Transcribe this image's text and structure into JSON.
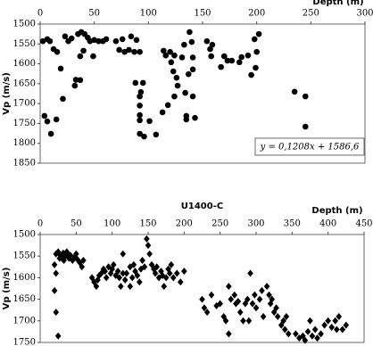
{
  "chart_data": [
    {
      "type": "scatter",
      "x_label": "Depth (m)",
      "y_label": "Vp (m/s)",
      "annotation": "y = 0,1208x + 1586,6",
      "x_axis_position": "top",
      "y_inverted": true,
      "frame": true,
      "xlim": [
        0,
        300
      ],
      "xticks": [
        0,
        50,
        100,
        150,
        200,
        250,
        300
      ],
      "ylim": [
        1500,
        1850
      ],
      "yticks": [
        1500,
        1550,
        1600,
        1650,
        1700,
        1750,
        1800,
        1850
      ],
      "series": [
        {
          "marker": "circle",
          "color": "#000000",
          "x": [
            2.5,
            6.6,
            9,
            12.4,
            15.7,
            19,
            21,
            4,
            6.6,
            10,
            15,
            23,
            26,
            29,
            32,
            33,
            37,
            35,
            38,
            41,
            44,
            46,
            37,
            40,
            49,
            50,
            54,
            58,
            61,
            70,
            73,
            76,
            78,
            82,
            84,
            87,
            89,
            92,
            92,
            92,
            92,
            92,
            92,
            96,
            101,
            107,
            95,
            93,
            88,
            114,
            116,
            120,
            121,
            123,
            124,
            126,
            127,
            131,
            133,
            134,
            135,
            135,
            137,
            138,
            140,
            141,
            141,
            143,
            141,
            118,
            113,
            124,
            154,
            157,
            159,
            158,
            167,
            170,
            173,
            177,
            184,
            186,
            192,
            195,
            198,
            199,
            200,
            202,
            235,
            245,
            245
          ],
          "values": [
            1543,
            1538,
            1543,
            1563,
            1570,
            1612,
            1688,
            1731,
            1745,
            1776,
            1740,
            1531,
            1543,
            1536,
            1655,
            1640,
            1641,
            1525,
            1520,
            1525,
            1534,
            1543,
            1581,
            1567,
            1581,
            1540,
            1543,
            1543,
            1538,
            1543,
            1565,
            1538,
            1570,
            1565,
            1531,
            1570,
            1540,
            1570,
            1682,
            1705,
            1729,
            1742,
            1776,
            1783,
            1744,
            1778,
            1648,
            1671,
            1648,
            1567,
            1579,
            1570,
            1596,
            1619,
            1579,
            1635,
            1655,
            1584,
            1552,
            1673,
            1731,
            1740,
            1626,
            1520,
            1545,
            1584,
            1614,
            1736,
            1682,
            1704,
            1722,
            1682,
            1543,
            1563,
            1552,
            1581,
            1608,
            1581,
            1592,
            1592,
            1596,
            1583,
            1579,
            1628,
            1538,
            1610,
            1570,
            1525,
            1670,
            1682,
            1758
          ]
        }
      ]
    },
    {
      "type": "scatter",
      "title": "U1400-C",
      "x_label": "Depth (m)",
      "y_label": "Vp (m/s)",
      "x_axis_position": "top",
      "y_inverted": true,
      "frame": true,
      "xlim": [
        0,
        450
      ],
      "xticks": [
        0,
        50,
        100,
        150,
        200,
        250,
        300,
        350,
        400,
        450
      ],
      "ylim": [
        1500,
        1750
      ],
      "yticks": [
        1500,
        1550,
        1600,
        1650,
        1700,
        1750
      ],
      "series": [
        {
          "marker": "diamond",
          "color": "#000000",
          "x": [
            22,
            25,
            28,
            30,
            32,
            35,
            38,
            40,
            42,
            45,
            48,
            50,
            52,
            55,
            27,
            33,
            37,
            22,
            20,
            22,
            25,
            20,
            58,
            60,
            72,
            75,
            78,
            80,
            82,
            85,
            88,
            90,
            92,
            95,
            98,
            100,
            102,
            105,
            108,
            110,
            112,
            115,
            118,
            120,
            125,
            128,
            130,
            132,
            135,
            138,
            140,
            142,
            145,
            148,
            150,
            152,
            155,
            158,
            160,
            162,
            165,
            168,
            170,
            172,
            175,
            178,
            180,
            182,
            185,
            190,
            195,
            200,
            125,
            115,
            225,
            228,
            232,
            238,
            245,
            250,
            255,
            258,
            262,
            265,
            270,
            272,
            275,
            278,
            282,
            285,
            288,
            290,
            292,
            295,
            298,
            300,
            305,
            308,
            310,
            315,
            318,
            320,
            322,
            325,
            328,
            330,
            335,
            338,
            340,
            342,
            345,
            262,
            355,
            360,
            365,
            368,
            372,
            375,
            378,
            382,
            385,
            390,
            395,
            400,
            405,
            410,
            415,
            420,
            425,
            412
          ],
          "values": [
            1545,
            1540,
            1548,
            1555,
            1543,
            1550,
            1545,
            1555,
            1548,
            1560,
            1552,
            1545,
            1558,
            1565,
            1555,
            1560,
            1540,
            1590,
            1630,
            1680,
            1735,
            1570,
            1575,
            1560,
            1600,
            1610,
            1620,
            1605,
            1595,
            1590,
            1580,
            1585,
            1600,
            1575,
            1590,
            1580,
            1570,
            1595,
            1585,
            1600,
            1620,
            1590,
            1605,
            1590,
            1575,
            1600,
            1570,
            1585,
            1595,
            1610,
            1580,
            1560,
            1575,
            1510,
            1525,
            1545,
            1570,
            1580,
            1590,
            1575,
            1600,
            1585,
            1595,
            1620,
            1600,
            1580,
            1590,
            1570,
            1600,
            1590,
            1610,
            1585,
            1620,
            1545,
            1650,
            1670,
            1680,
            1640,
            1665,
            1660,
            1690,
            1700,
            1620,
            1650,
            1640,
            1660,
            1655,
            1680,
            1700,
            1660,
            1650,
            1700,
            1590,
            1660,
            1640,
            1670,
            1650,
            1630,
            1690,
            1620,
            1640,
            1660,
            1650,
            1680,
            1670,
            1690,
            1710,
            1700,
            1720,
            1690,
            1730,
            1730,
            1730,
            1740,
            1735,
            1745,
            1725,
            1700,
            1735,
            1720,
            1740,
            1730,
            1710,
            1700,
            1715,
            1700,
            1690,
            1720,
            1710,
            1720
          ]
        }
      ]
    }
  ]
}
